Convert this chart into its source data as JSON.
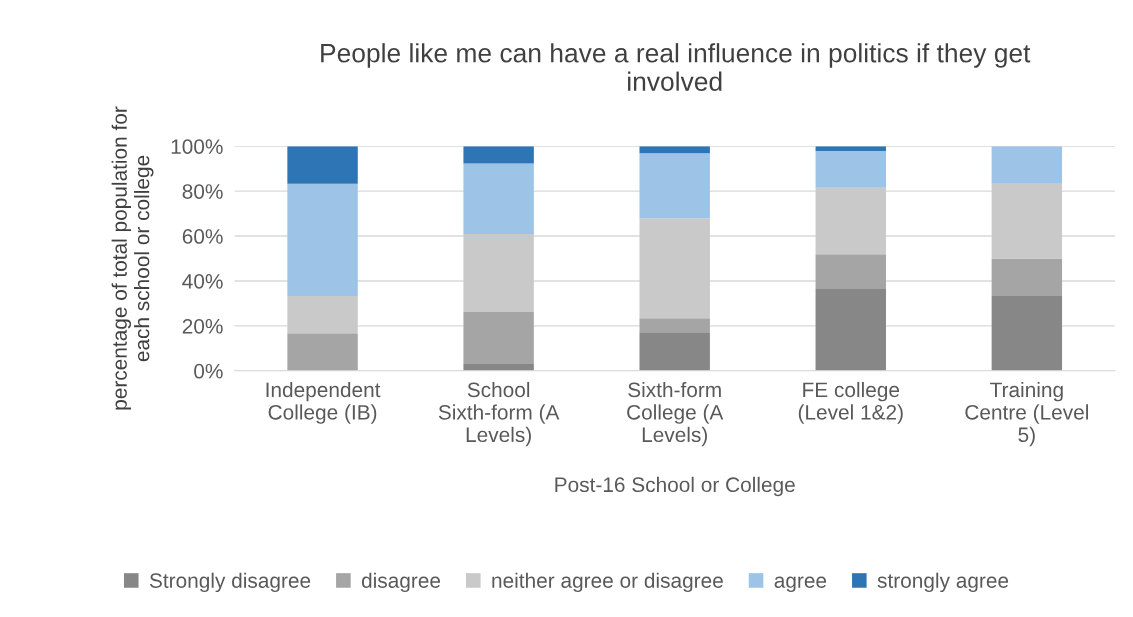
{
  "chart_data": {
    "type": "bar",
    "stacked": true,
    "title": "People like me can have a real influence in politics if they get involved",
    "xlabel": "Post-16 School or College",
    "ylabel": "percentage of total population for each school or college",
    "categories": [
      "Independent College (IB)",
      "School Sixth-form (A Levels)",
      "Sixth-form College (A Levels)",
      "FE college (Level 1&2)",
      "Training Centre (Level 5)"
    ],
    "series": [
      {
        "name": "Strongly disagree",
        "color": "#878787",
        "values": [
          0,
          3.4,
          17.2,
          36.4,
          33.3
        ]
      },
      {
        "name": "disagree",
        "color": "#a5a5a5",
        "values": [
          16.7,
          22.8,
          6.2,
          15.5,
          16.7
        ]
      },
      {
        "name": "neither agree or disagree",
        "color": "#c9c9c9",
        "values": [
          16.6,
          34.7,
          44.5,
          29.6,
          33.3
        ]
      },
      {
        "name": "agree",
        "color": "#9dc3e6",
        "values": [
          50,
          31.4,
          29.0,
          16.4,
          16.7
        ]
      },
      {
        "name": "strongly agree",
        "color": "#2e75b6",
        "values": [
          16.7,
          7.7,
          3.1,
          2.1,
          0
        ]
      }
    ],
    "ylim": [
      0,
      100
    ],
    "yticks": [
      {
        "value": 0,
        "label": "0%"
      },
      {
        "value": 20,
        "label": "20%"
      },
      {
        "value": 40,
        "label": "40%"
      },
      {
        "value": 60,
        "label": "60%"
      },
      {
        "value": 80,
        "label": "80%"
      },
      {
        "value": 100,
        "label": "100%"
      }
    ],
    "grid": "y",
    "legend": "bottom"
  }
}
